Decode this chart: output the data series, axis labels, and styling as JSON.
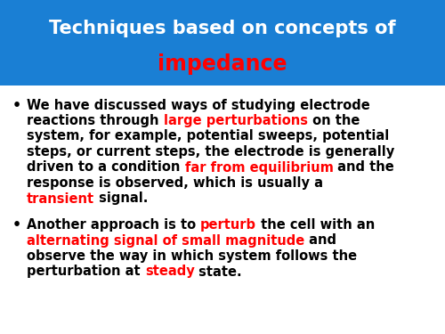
{
  "title_line1": "Techniques based on concepts of",
  "title_line2": "impedance",
  "title_bg_color": "#1a7fd4",
  "title_text_color1": "#ffffff",
  "title_text_color2": "#ff0000",
  "body_bg_color": "#ffffff",
  "font_size_title": 15,
  "font_size_title2": 17,
  "font_size_body": 10.5,
  "bullet_lines": [
    [
      {
        "text": "We have discussed ways of studying electrode",
        "color": "#000000"
      }
    ],
    [
      {
        "text": "reactions through ",
        "color": "#000000"
      },
      {
        "text": "large perturbations",
        "color": "#ff0000"
      },
      {
        "text": " on the",
        "color": "#000000"
      }
    ],
    [
      {
        "text": "system, for example, potential sweeps, potential",
        "color": "#000000"
      }
    ],
    [
      {
        "text": "steps, or current steps, the electrode is generally",
        "color": "#000000"
      }
    ],
    [
      {
        "text": "driven to a condition ",
        "color": "#000000"
      },
      {
        "text": "far from equilibrium",
        "color": "#ff0000"
      },
      {
        "text": " and the",
        "color": "#000000"
      }
    ],
    [
      {
        "text": "response is observed, which is usually a",
        "color": "#000000"
      }
    ],
    [
      {
        "text": "transient",
        "color": "#ff0000"
      },
      {
        "text": " signal.",
        "color": "#000000"
      }
    ]
  ],
  "bullet2_lines": [
    [
      {
        "text": "Another approach is to ",
        "color": "#000000"
      },
      {
        "text": "perturb",
        "color": "#ff0000"
      },
      {
        "text": " the cell with an",
        "color": "#000000"
      }
    ],
    [
      {
        "text": "alternating signal of small magnitude",
        "color": "#ff0000"
      },
      {
        "text": " and",
        "color": "#000000"
      }
    ],
    [
      {
        "text": "observe the way in which system follows the",
        "color": "#000000"
      }
    ],
    [
      {
        "text": "perturbation at ",
        "color": "#000000"
      },
      {
        "text": "steady",
        "color": "#ff0000"
      },
      {
        "text": " state.",
        "color": "#000000"
      }
    ]
  ]
}
